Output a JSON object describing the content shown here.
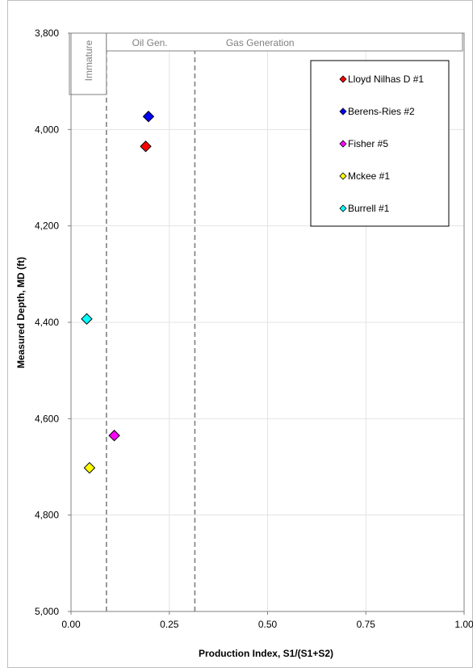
{
  "chart_data": {
    "type": "scatter",
    "xlabel": "Production Index, S1/(S1+S2)",
    "ylabel": "Measured Depth, MD (ft)",
    "xlim": [
      0,
      1
    ],
    "ylim": [
      3800,
      5000
    ],
    "y_inverted": true,
    "grid": true,
    "legend_position": "top-right",
    "x_ticks": [
      "0.00",
      "0.25",
      "0.50",
      "0.75",
      "1.00"
    ],
    "x_tick_values": [
      0,
      0.25,
      0.5,
      0.75,
      1.0
    ],
    "y_ticks": [
      "3,800",
      "4,000",
      "4,200",
      "4,400",
      "4,600",
      "4,800",
      "5,000"
    ],
    "y_tick_values": [
      3800,
      4000,
      4200,
      4400,
      4600,
      4800,
      5000
    ],
    "zones": [
      {
        "label": "Immature",
        "from": 0.0,
        "to": 0.09
      },
      {
        "label": "Oil Gen.",
        "from": 0.09,
        "to": 0.315
      },
      {
        "label": "Gas Generation",
        "from": 0.315,
        "to": 1.0
      }
    ],
    "zone_boundaries": [
      0.09,
      0.315
    ],
    "series": [
      {
        "name": "Lloyd Nilhas D #1",
        "color": "#ff0000",
        "x": [
          0.19
        ],
        "y": [
          4035
        ]
      },
      {
        "name": "Berens-Ries #2",
        "color": "#0000ff",
        "x": [
          0.197
        ],
        "y": [
          3973
        ]
      },
      {
        "name": "Fisher #5",
        "color": "#ff00ff",
        "x": [
          0.11
        ],
        "y": [
          4635
        ]
      },
      {
        "name": "Mckee #1",
        "color": "#ffff00",
        "x": [
          0.047
        ],
        "y": [
          4702
        ]
      },
      {
        "name": "Burrell #1",
        "color": "#00ffff",
        "x": [
          0.04
        ],
        "y": [
          4393
        ]
      }
    ]
  }
}
